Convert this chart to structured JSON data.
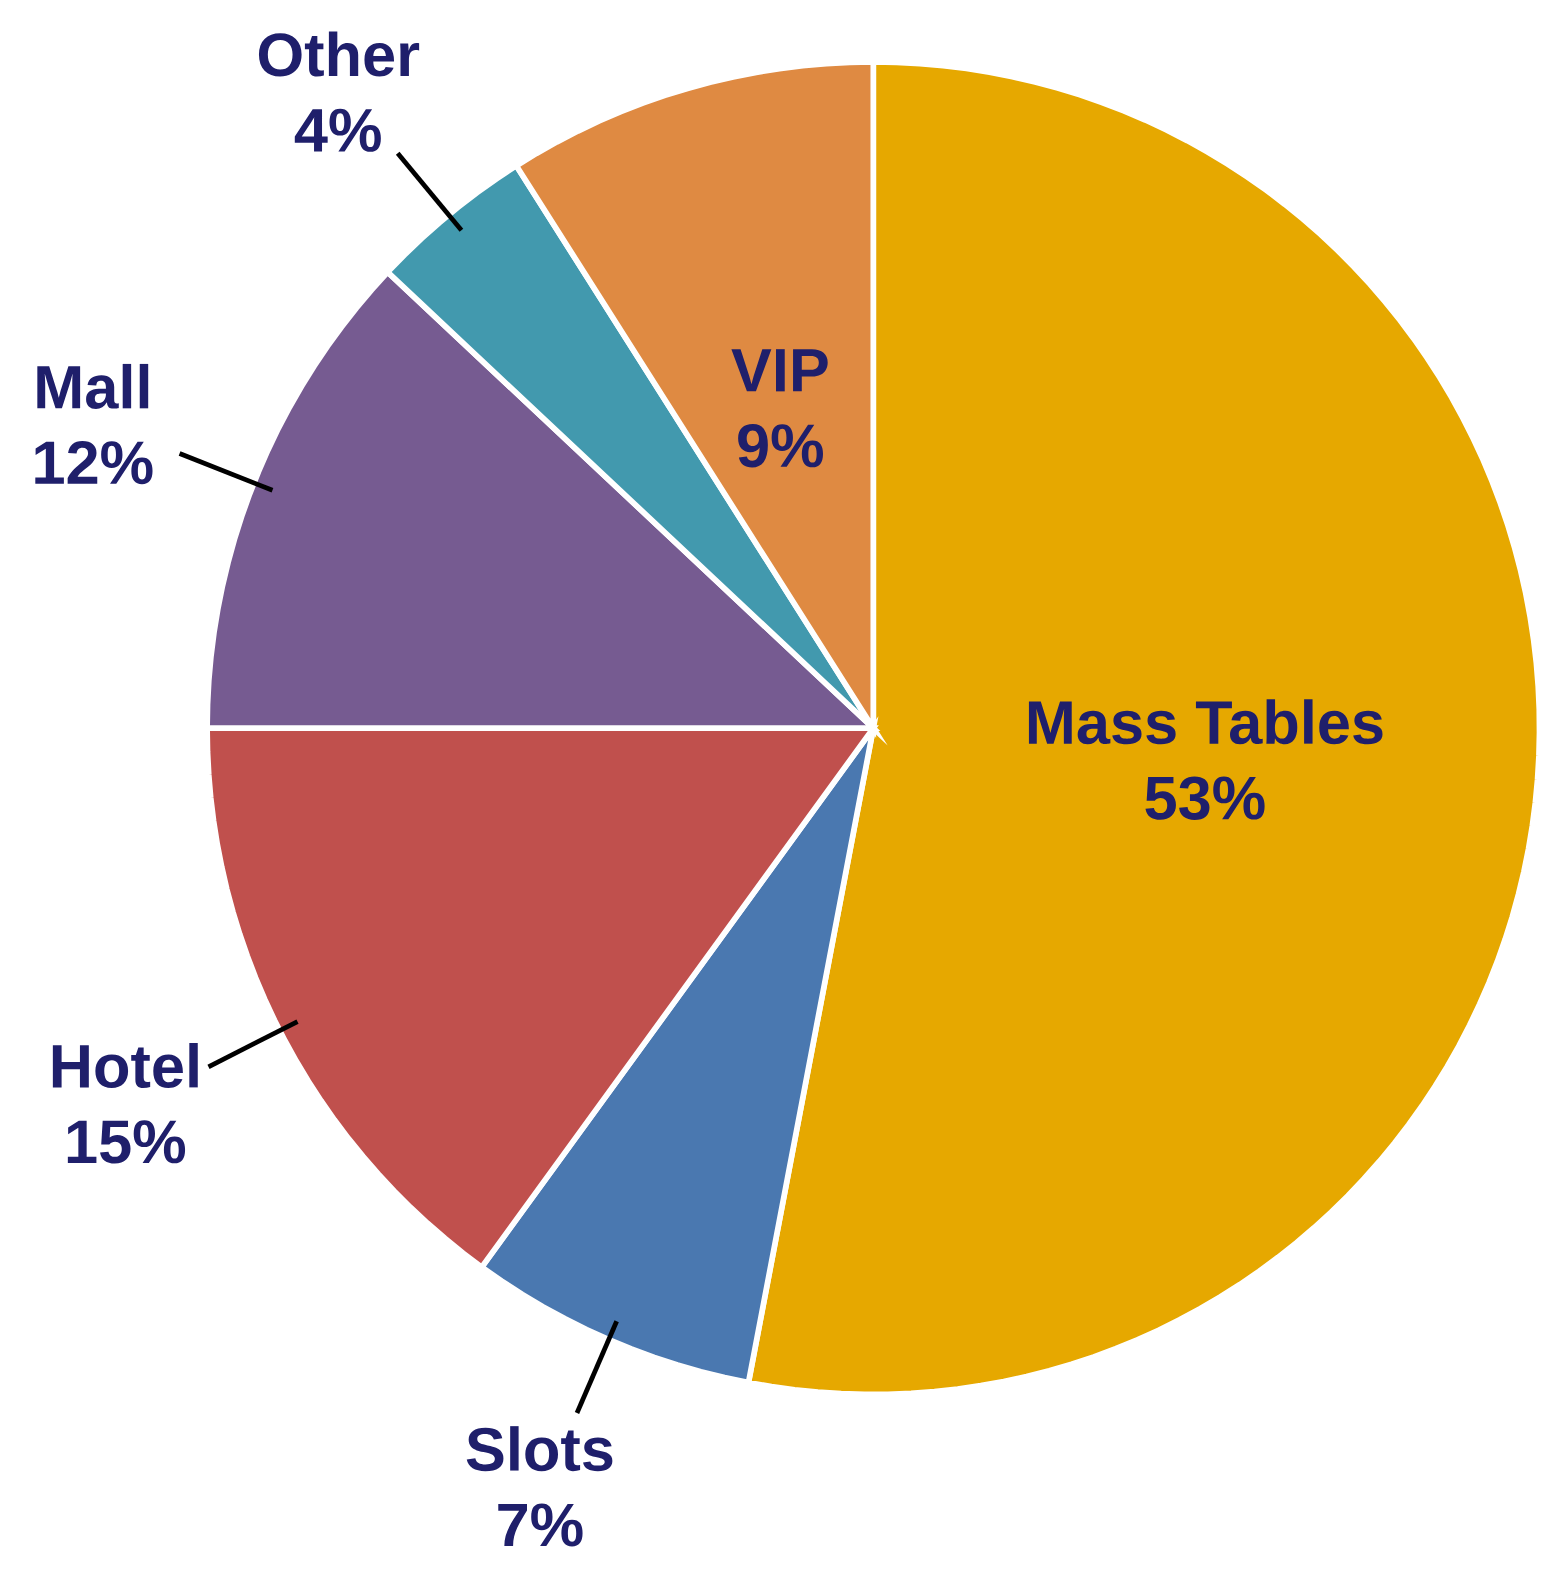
{
  "chart_data": {
    "type": "pie",
    "categories": [
      "Mass Tables",
      "Slots",
      "Hotel",
      "Mall",
      "Other",
      "VIP"
    ],
    "values": [
      53,
      7,
      15,
      12,
      4,
      9
    ],
    "value_labels": [
      "53%",
      "7%",
      "15%",
      "12%",
      "4%",
      "9%"
    ],
    "colors": [
      "#e6a800",
      "#4a78b0",
      "#c0504d",
      "#765b91",
      "#4299ae",
      "#df8a42"
    ]
  }
}
